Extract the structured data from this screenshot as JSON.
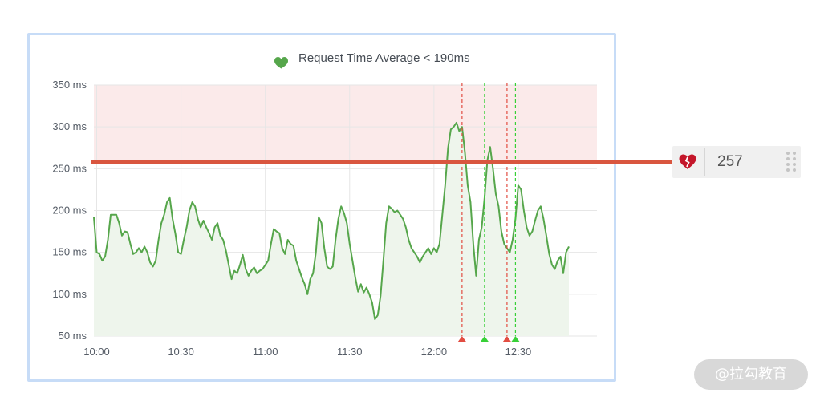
{
  "chart_data": {
    "type": "line",
    "title": "Request Time Average < 190ms",
    "xlabel": "",
    "ylabel": "",
    "x_ticks": [
      "10:00",
      "10:30",
      "11:00",
      "11:30",
      "12:00",
      "12:30"
    ],
    "y_ticks": [
      "350 ms",
      "300 ms",
      "250 ms",
      "200 ms",
      "150 ms",
      "100 ms",
      "50 ms"
    ],
    "ylim": [
      50,
      350
    ],
    "x_range": [
      "09:59",
      "12:58"
    ],
    "grid": true,
    "threshold": {
      "value": 257,
      "above_color": "#fbeaea"
    },
    "series": [
      {
        "color": "#56a64b",
        "fill": "#eef5ec",
        "points": [
          [
            "09:59",
            192
          ],
          [
            "10:00",
            150
          ],
          [
            "10:01",
            148
          ],
          [
            "10:02",
            140
          ],
          [
            "10:03",
            145
          ],
          [
            "10:04",
            165
          ],
          [
            "10:05",
            195
          ],
          [
            "10:07",
            195
          ],
          [
            "10:08",
            185
          ],
          [
            "10:09",
            170
          ],
          [
            "10:10",
            175
          ],
          [
            "10:11",
            174
          ],
          [
            "10:12",
            160
          ],
          [
            "10:13",
            148
          ],
          [
            "10:14",
            150
          ],
          [
            "10:15",
            155
          ],
          [
            "10:16",
            150
          ],
          [
            "10:17",
            157
          ],
          [
            "10:18",
            150
          ],
          [
            "10:19",
            138
          ],
          [
            "10:20",
            133
          ],
          [
            "10:21",
            140
          ],
          [
            "10:22",
            165
          ],
          [
            "10:23",
            185
          ],
          [
            "10:24",
            195
          ],
          [
            "10:25",
            210
          ],
          [
            "10:26",
            215
          ],
          [
            "10:27",
            190
          ],
          [
            "10:28",
            172
          ],
          [
            "10:29",
            150
          ],
          [
            "10:30",
            148
          ],
          [
            "10:31",
            165
          ],
          [
            "10:32",
            180
          ],
          [
            "10:33",
            200
          ],
          [
            "10:34",
            210
          ],
          [
            "10:35",
            205
          ],
          [
            "10:36",
            190
          ],
          [
            "10:37",
            180
          ],
          [
            "10:38",
            188
          ],
          [
            "10:39",
            180
          ],
          [
            "10:40",
            173
          ],
          [
            "10:41",
            165
          ],
          [
            "10:42",
            180
          ],
          [
            "10:43",
            185
          ],
          [
            "10:44",
            170
          ],
          [
            "10:45",
            165
          ],
          [
            "10:46",
            152
          ],
          [
            "10:47",
            135
          ],
          [
            "10:48",
            118
          ],
          [
            "10:49",
            128
          ],
          [
            "10:50",
            125
          ],
          [
            "10:51",
            135
          ],
          [
            "10:52",
            147
          ],
          [
            "10:53",
            130
          ],
          [
            "10:54",
            122
          ],
          [
            "10:55",
            128
          ],
          [
            "10:56",
            132
          ],
          [
            "10:57",
            125
          ],
          [
            "10:58",
            128
          ],
          [
            "10:59",
            130
          ],
          [
            "11:00",
            135
          ],
          [
            "11:01",
            140
          ],
          [
            "11:02",
            160
          ],
          [
            "11:03",
            178
          ],
          [
            "11:04",
            175
          ],
          [
            "11:05",
            173
          ],
          [
            "11:06",
            155
          ],
          [
            "11:07",
            148
          ],
          [
            "11:08",
            165
          ],
          [
            "11:09",
            160
          ],
          [
            "11:10",
            158
          ],
          [
            "11:11",
            140
          ],
          [
            "11:12",
            130
          ],
          [
            "11:13",
            120
          ],
          [
            "11:14",
            112
          ],
          [
            "11:15",
            100
          ],
          [
            "11:16",
            118
          ],
          [
            "11:17",
            125
          ],
          [
            "11:18",
            150
          ],
          [
            "11:19",
            192
          ],
          [
            "11:20",
            185
          ],
          [
            "11:21",
            155
          ],
          [
            "11:22",
            133
          ],
          [
            "11:23",
            130
          ],
          [
            "11:24",
            133
          ],
          [
            "11:25",
            165
          ],
          [
            "11:26",
            190
          ],
          [
            "11:27",
            205
          ],
          [
            "11:28",
            197
          ],
          [
            "11:29",
            185
          ],
          [
            "11:30",
            160
          ],
          [
            "11:31",
            140
          ],
          [
            "11:32",
            120
          ],
          [
            "11:33",
            103
          ],
          [
            "11:34",
            112
          ],
          [
            "11:35",
            102
          ],
          [
            "11:36",
            108
          ],
          [
            "11:37",
            100
          ],
          [
            "11:38",
            90
          ],
          [
            "11:39",
            70
          ],
          [
            "11:40",
            75
          ],
          [
            "11:41",
            98
          ],
          [
            "11:42",
            140
          ],
          [
            "11:43",
            185
          ],
          [
            "11:44",
            205
          ],
          [
            "11:45",
            202
          ],
          [
            "11:46",
            198
          ],
          [
            "11:47",
            200
          ],
          [
            "11:48",
            195
          ],
          [
            "11:49",
            190
          ],
          [
            "11:50",
            180
          ],
          [
            "11:51",
            165
          ],
          [
            "11:52",
            155
          ],
          [
            "11:53",
            150
          ],
          [
            "11:54",
            145
          ],
          [
            "11:55",
            138
          ],
          [
            "11:56",
            145
          ],
          [
            "11:57",
            150
          ],
          [
            "11:58",
            155
          ],
          [
            "11:59",
            148
          ],
          [
            "12:00",
            155
          ],
          [
            "12:01",
            150
          ],
          [
            "12:02",
            160
          ],
          [
            "12:03",
            195
          ],
          [
            "12:04",
            230
          ],
          [
            "12:05",
            275
          ],
          [
            "12:06",
            297
          ],
          [
            "12:07",
            300
          ],
          [
            "12:08",
            305
          ],
          [
            "12:09",
            295
          ],
          [
            "12:10",
            300
          ],
          [
            "12:11",
            270
          ],
          [
            "12:12",
            230
          ],
          [
            "12:13",
            210
          ],
          [
            "12:14",
            160
          ],
          [
            "12:15",
            122
          ],
          [
            "12:16",
            165
          ],
          [
            "12:17",
            180
          ],
          [
            "12:18",
            215
          ],
          [
            "12:19",
            260
          ],
          [
            "12:20",
            276
          ],
          [
            "12:21",
            250
          ],
          [
            "12:22",
            220
          ],
          [
            "12:23",
            205
          ],
          [
            "12:24",
            175
          ],
          [
            "12:25",
            160
          ],
          [
            "12:26",
            155
          ],
          [
            "12:27",
            150
          ],
          [
            "12:28",
            165
          ],
          [
            "12:29",
            190
          ],
          [
            "12:30",
            230
          ],
          [
            "12:31",
            225
          ],
          [
            "12:32",
            200
          ],
          [
            "12:33",
            180
          ],
          [
            "12:34",
            170
          ],
          [
            "12:35",
            175
          ],
          [
            "12:36",
            188
          ],
          [
            "12:37",
            200
          ],
          [
            "12:38",
            205
          ],
          [
            "12:39",
            190
          ],
          [
            "12:40",
            170
          ],
          [
            "12:41",
            148
          ],
          [
            "12:42",
            135
          ],
          [
            "12:43",
            130
          ],
          [
            "12:44",
            140
          ],
          [
            "12:45",
            145
          ],
          [
            "12:46",
            125
          ],
          [
            "12:47",
            150
          ],
          [
            "12:48",
            157
          ]
        ]
      }
    ],
    "annotations": [
      {
        "time": "12:10",
        "color": "#e24d42"
      },
      {
        "time": "12:18",
        "color": "#37d037"
      },
      {
        "time": "12:26",
        "color": "#e24d42"
      },
      {
        "time": "12:29",
        "color": "#37d037"
      }
    ]
  },
  "threshold_control": {
    "value": "257",
    "icon": "broken-heart-icon",
    "line_color": "#d9563f"
  },
  "watermark": "@拉勾教育"
}
